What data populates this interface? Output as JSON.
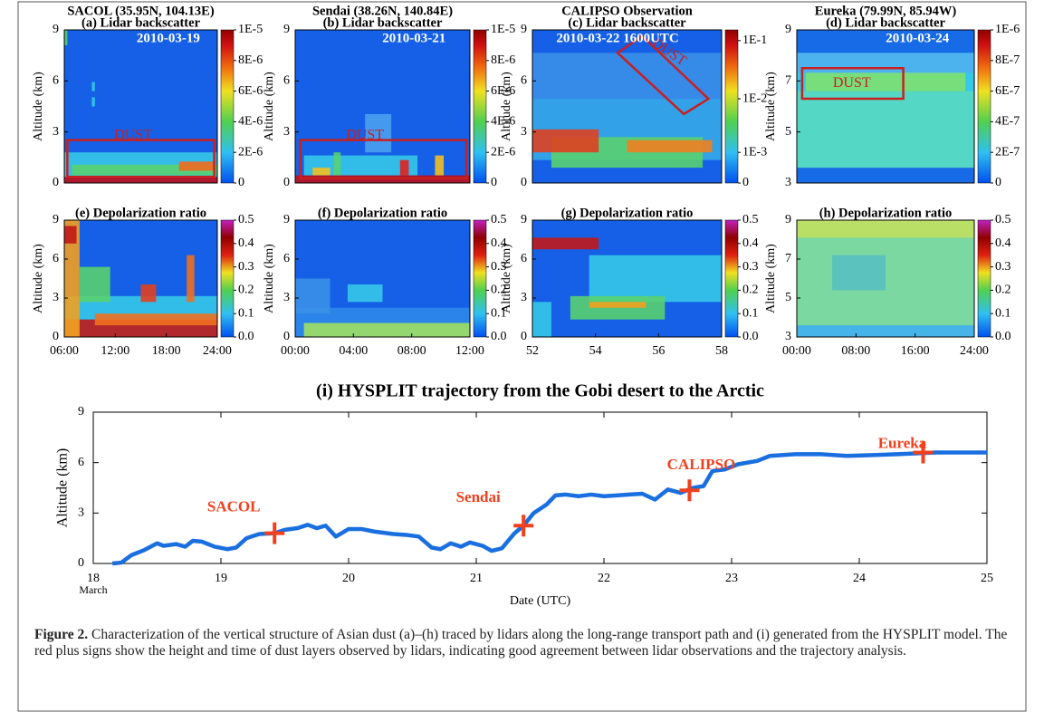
{
  "panels": [
    {
      "site": "SACOL (35.95N, 104.13E)",
      "title": "(a) Lidar backscatter",
      "date": "2010-03-19",
      "box_label": "DUST",
      "y_label": "Altitude (km)",
      "ylim": [
        0,
        9
      ],
      "yticks": [
        0,
        3,
        6,
        9
      ],
      "colorbar": [
        "0",
        "2E-6",
        "4E-6",
        "6E-6",
        "8E-6",
        "1E-5"
      ]
    },
    {
      "site": "Sendai (38.26N, 140.84E)",
      "title": "(b) Lidar backscatter",
      "date": "2010-03-21",
      "box_label": "DUST",
      "y_label": "Altitude (km)",
      "ylim": [
        0,
        9
      ],
      "yticks": [
        0,
        3,
        6,
        9
      ],
      "colorbar": [
        "0",
        "2E-6",
        "4E-6",
        "6E-6",
        "8E-6",
        "1E-5"
      ]
    },
    {
      "site": "CALIPSO Observation",
      "title": "(c) Lidar backscatter",
      "date": "2010-03-22 1600UTC",
      "box_label": "DUST",
      "y_label": "Altitude (km)",
      "ylim": [
        0,
        9
      ],
      "yticks": [
        0,
        3,
        6,
        9
      ],
      "colorbar": [
        "0",
        "1E-3",
        "1E-2",
        "1E-1"
      ]
    },
    {
      "site": "Eureka (79.99N, 85.94W)",
      "title": "(d) Lidar backscatter",
      "date": "2010-03-24",
      "box_label": "DUST",
      "y_label": "Altitude (km)",
      "ylim": [
        3,
        9
      ],
      "yticks": [
        3,
        5,
        7,
        9
      ],
      "colorbar": [
        "0",
        "2E-7",
        "4E-7",
        "6E-7",
        "8E-7",
        "1E-6"
      ]
    },
    {
      "title": "(e) Depolarization ratio",
      "y_label": "Altitude (km)",
      "ylim": [
        0,
        9
      ],
      "yticks": [
        0,
        3,
        6,
        9
      ],
      "colorbar": [
        "0.0",
        "0.1",
        "0.2",
        "0.3",
        "0.4",
        "0.5"
      ],
      "xticks": [
        "06:00",
        "12:00",
        "18:00",
        "24:00"
      ]
    },
    {
      "title": "(f) Depolarization ratio",
      "y_label": "Altitude (km)",
      "ylim": [
        0,
        9
      ],
      "yticks": [
        0,
        3,
        6,
        9
      ],
      "colorbar": [
        "0.0",
        "0.1",
        "0.2",
        "0.3",
        "0.4",
        "0.5"
      ],
      "xticks": [
        "00:00",
        "04:00",
        "08:00",
        "12:00"
      ]
    },
    {
      "title": "(g) Depolarization ratio",
      "y_label": "Altitude (km)",
      "ylim": [
        0,
        9
      ],
      "yticks": [
        0,
        3,
        6,
        9
      ],
      "colorbar": [
        "0.0",
        "0.1",
        "0.2",
        "0.3",
        "0.4",
        "0.5"
      ],
      "xticks": [
        "52",
        "54",
        "56",
        "58"
      ]
    },
    {
      "title": "(h) Depolarization ratio",
      "y_label": "Altitude (km)",
      "ylim": [
        3,
        9
      ],
      "yticks": [
        3,
        5,
        7,
        9
      ],
      "colorbar": [
        "0.0",
        "0.1",
        "0.2",
        "0.3",
        "0.4",
        "0.5"
      ],
      "xticks": [
        "00:00",
        "08:00",
        "16:00",
        "24:00"
      ]
    }
  ],
  "chart_data": {
    "type": "line",
    "title": "(i) HYSPLIT trajectory from the Gobi desert to the Arctic",
    "x_label": "Date (UTC)",
    "y_label": "Altitude (km)",
    "xtick_note": "March",
    "xlim": [
      18,
      25
    ],
    "xticks": [
      18,
      19,
      20,
      21,
      22,
      23,
      24,
      25
    ],
    "ylim": [
      0,
      9
    ],
    "yticks": [
      0,
      3,
      6,
      9
    ],
    "series": [
      {
        "color": "#1a6fe0",
        "x": [
          18.15,
          18.22,
          18.3,
          18.4,
          18.5,
          18.55,
          18.65,
          18.72,
          18.78,
          18.85,
          18.95,
          19.05,
          19.12,
          19.2,
          19.3,
          19.42,
          19.5,
          19.6,
          19.68,
          19.75,
          19.82,
          19.9,
          20.0,
          20.1,
          20.2,
          20.35,
          20.45,
          20.55,
          20.65,
          20.72,
          20.8,
          20.88,
          20.95,
          21.05,
          21.12,
          21.2,
          21.3,
          21.37,
          21.45,
          21.55,
          21.62,
          21.7,
          21.8,
          21.9,
          22.0,
          22.1,
          22.2,
          22.3,
          22.4,
          22.5,
          22.6,
          22.7,
          22.78,
          22.85,
          22.95,
          23.05,
          23.2,
          23.3,
          23.5,
          23.7,
          23.9,
          24.1,
          24.3,
          24.6,
          24.8,
          25.0
        ],
        "values": [
          0,
          0.05,
          0.5,
          0.8,
          1.2,
          1.05,
          1.15,
          1.0,
          1.35,
          1.3,
          1.0,
          0.85,
          0.95,
          1.5,
          1.75,
          1.8,
          2.0,
          2.1,
          2.3,
          2.1,
          2.25,
          1.6,
          2.05,
          2.05,
          1.9,
          1.75,
          1.7,
          1.6,
          0.95,
          0.85,
          1.2,
          1.0,
          1.25,
          1.05,
          0.75,
          0.9,
          1.8,
          2.25,
          3.0,
          3.5,
          4.05,
          4.1,
          4.0,
          4.1,
          4.0,
          4.05,
          4.1,
          4.15,
          3.8,
          4.4,
          4.2,
          4.5,
          4.6,
          5.5,
          5.6,
          5.9,
          6.1,
          6.4,
          6.5,
          6.5,
          6.4,
          6.45,
          6.5,
          6.6,
          6.6,
          6.6
        ]
      }
    ],
    "markers": {
      "color": "#f0401e",
      "labels": [
        "SACOL",
        "Sendai",
        "CALIPSO",
        "Eureka"
      ],
      "x": [
        19.42,
        21.37,
        22.67,
        24.5
      ],
      "y": [
        1.8,
        2.25,
        4.35,
        6.6
      ]
    }
  },
  "caption": {
    "label": "Figure 2.",
    "text": "Characterization of the vertical structure of Asian dust (a)–(h) traced by lidars along the long-range transport path and (i) generated from the HYSPLIT model. The red plus signs show the height and time of dust layers observed by lidars, indicating good agreement between lidar observations and the trajectory analysis."
  }
}
